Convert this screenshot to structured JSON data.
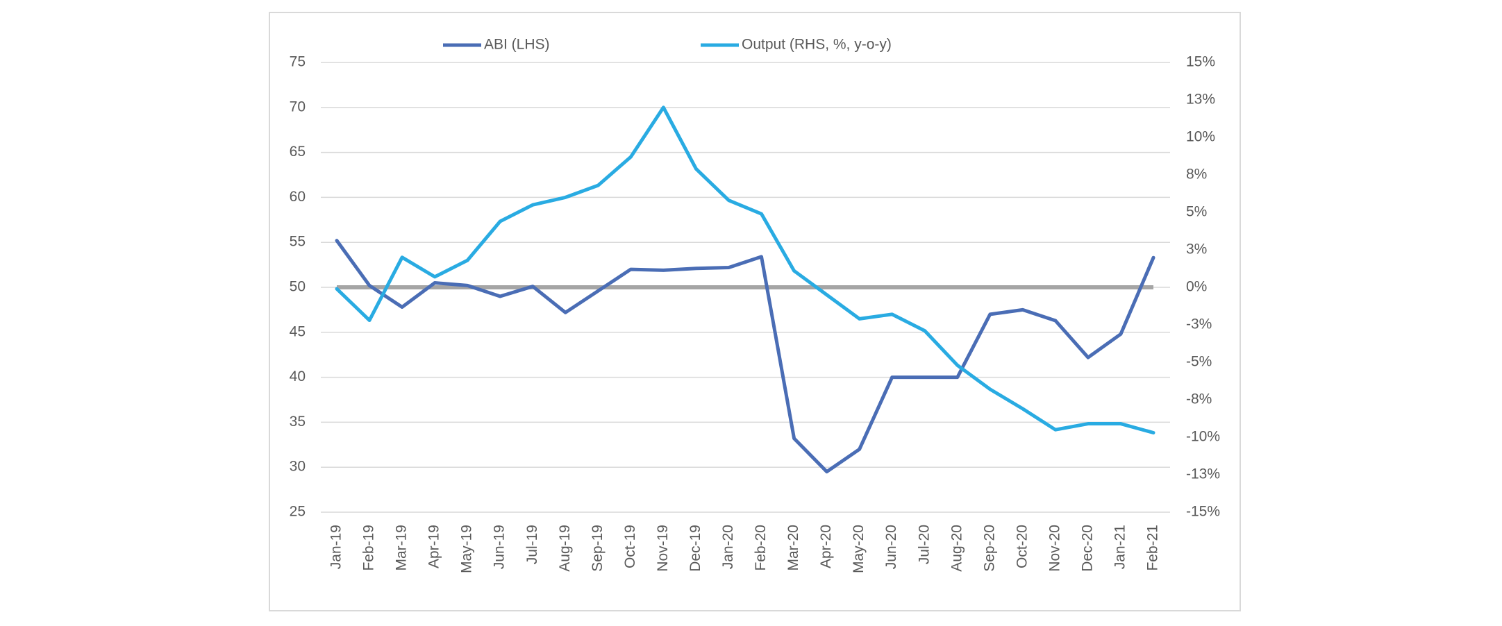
{
  "chart_data": {
    "type": "line",
    "categories": [
      "Jan-19",
      "Feb-19",
      "Mar-19",
      "Apr-19",
      "May-19",
      "Jun-19",
      "Jul-19",
      "Aug-19",
      "Sep-19",
      "Oct-19",
      "Nov-19",
      "Dec-19",
      "Jan-20",
      "Feb-20",
      "Mar-20",
      "Apr-20",
      "May-20",
      "Jun-20",
      "Jul-20",
      "Aug-20",
      "Sep-20",
      "Oct-20",
      "Nov-20",
      "Dec-20",
      "Jan-21",
      "Feb-21"
    ],
    "series": [
      {
        "name": "ABI (LHS)",
        "color": "#4a6db5",
        "values": [
          55.2,
          50.2,
          47.8,
          50.5,
          50.2,
          49.0,
          50.1,
          47.2,
          49.6,
          52.0,
          51.9,
          52.1,
          52.2,
          53.4,
          33.2,
          29.5,
          32.0,
          40.0,
          40.0,
          40.0,
          47.0,
          47.5,
          46.3,
          42.2,
          44.8,
          53.3
        ]
      },
      {
        "name": "Output (RHS, %, y-o-y)",
        "color": "#29abe2",
        "axis": "y2",
        "values": [
          -0.1,
          -2.2,
          2.0,
          0.7,
          1.8,
          4.4,
          5.5,
          6.0,
          6.8,
          8.7,
          12.0,
          7.9,
          5.8,
          4.9,
          1.1,
          -0.5,
          -2.1,
          -1.8,
          -2.9,
          -5.2,
          -6.8,
          -8.1,
          -9.5,
          -9.1,
          -9.1,
          -9.7
        ]
      }
    ],
    "ylim": [
      25,
      75
    ],
    "yticks": [
      25,
      30,
      35,
      40,
      45,
      50,
      55,
      60,
      65,
      70,
      75
    ],
    "y2lim": [
      -15,
      15
    ],
    "y2ticks": [
      {
        "value": -15,
        "label": "-15%"
      },
      {
        "value": -12.5,
        "label": "-13%"
      },
      {
        "value": -10,
        "label": "-10%"
      },
      {
        "value": -7.5,
        "label": "-8%"
      },
      {
        "value": -5,
        "label": "-5%"
      },
      {
        "value": -2.5,
        "label": "-3%"
      },
      {
        "value": 0,
        "label": "0%"
      },
      {
        "value": 2.5,
        "label": "3%"
      },
      {
        "value": 5,
        "label": "5%"
      },
      {
        "value": 7.5,
        "label": "8%"
      },
      {
        "value": 10,
        "label": "10%"
      },
      {
        "value": 12.5,
        "label": "13%"
      },
      {
        "value": 15,
        "label": "15%"
      }
    ],
    "reference_line": {
      "value": 50,
      "color": "#a5a5a5"
    },
    "grid": true,
    "legend": "top"
  }
}
